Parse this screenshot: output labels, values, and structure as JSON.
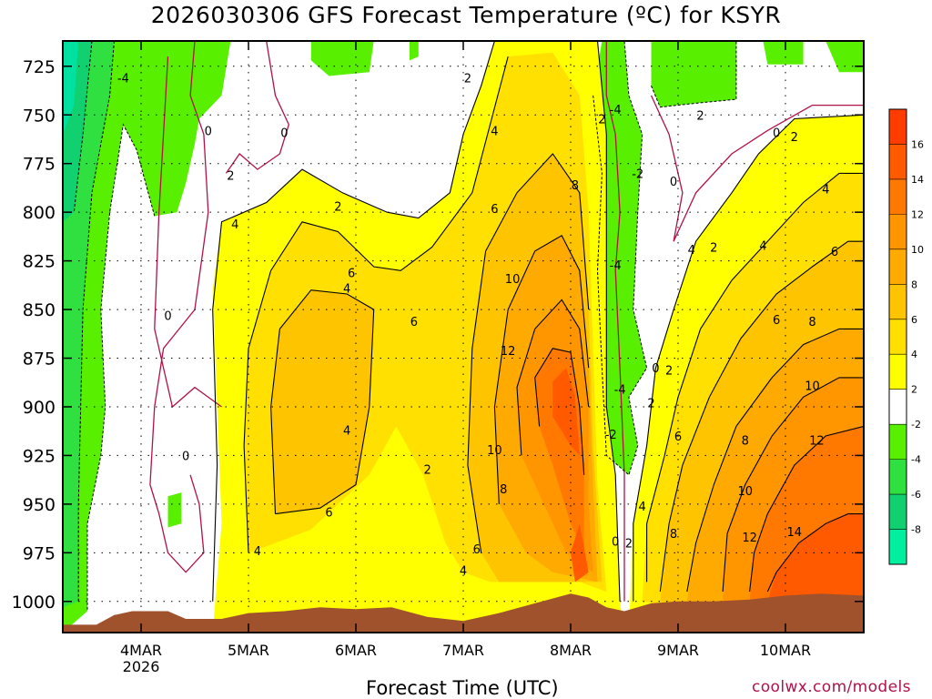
{
  "chart_data": {
    "type": "contour",
    "title": "2026030306 GFS Forecast Temperature (ºC) for KSYR",
    "xlabel": "Forecast Time (UTC)",
    "ylabel": "",
    "x_ticks": [
      {
        "label": "4MAR",
        "sub": "2026",
        "x": 0
      },
      {
        "label": "5MAR",
        "sub": "",
        "x": 24
      },
      {
        "label": "6MAR",
        "sub": "",
        "x": 48
      },
      {
        "label": "7MAR",
        "sub": "",
        "x": 72
      },
      {
        "label": "8MAR",
        "sub": "",
        "x": 96
      },
      {
        "label": "9MAR",
        "sub": "",
        "x": 120
      },
      {
        "label": "10MAR",
        "sub": "",
        "x": 144
      }
    ],
    "xlim": [
      -17.5,
      161.5
    ],
    "y_ticks": [
      725,
      750,
      775,
      800,
      825,
      850,
      875,
      900,
      925,
      950,
      975,
      1000
    ],
    "ylim": [
      1016,
      712
    ],
    "colorbar": {
      "labels": [
        "16",
        "14",
        "12",
        "10",
        "8",
        "6",
        "4",
        "2",
        "-2",
        "-4",
        "-6",
        "-8"
      ],
      "colors": [
        "#ff3c00",
        "#ff5a00",
        "#ff7800",
        "#ff9600",
        "#ffaa00",
        "#ffc400",
        "#ffe000",
        "#ffff00",
        "#ffffff",
        "#58f000",
        "#30e040",
        "#10d070",
        "#00f0a0"
      ]
    },
    "fill_colors": {
      "very_cold": "#00e0a0",
      "cold": "#10d070",
      "cool": "#30e040",
      "below_zero": "#58f000",
      "near_zero": "#ffffff",
      "mild": "#ffff00",
      "warm": "#ffe000",
      "warmer": "#ffc400",
      "hot": "#ffaa00",
      "hotter": "#ff9600",
      "very_hot": "#ff7800",
      "hottest": "#ff5a00",
      "terrain": "#a0522d"
    },
    "contour_labels": [
      {
        "text": "-4",
        "x": -4,
        "y": 731
      },
      {
        "text": "0",
        "x": 15,
        "y": 758
      },
      {
        "text": "0",
        "x": 32,
        "y": 759
      },
      {
        "text": "2",
        "x": 20,
        "y": 781
      },
      {
        "text": "4",
        "x": 21,
        "y": 806
      },
      {
        "text": "2",
        "x": 44,
        "y": 797
      },
      {
        "text": "6",
        "x": 47,
        "y": 831
      },
      {
        "text": "4",
        "x": 46,
        "y": 839
      },
      {
        "text": "0",
        "x": 6,
        "y": 853
      },
      {
        "text": "6",
        "x": 61,
        "y": 856
      },
      {
        "text": "12",
        "x": 82,
        "y": 871
      },
      {
        "text": "10",
        "x": 83,
        "y": 834
      },
      {
        "text": "8",
        "x": 97,
        "y": 786
      },
      {
        "text": "6",
        "x": 79,
        "y": 798
      },
      {
        "text": "4",
        "x": 79,
        "y": 758
      },
      {
        "text": "2",
        "x": 73,
        "y": 731
      },
      {
        "text": "2",
        "x": 103,
        "y": 752
      },
      {
        "text": "-4",
        "x": 106,
        "y": 747
      },
      {
        "text": "-2",
        "x": 111,
        "y": 780
      },
      {
        "text": "-4",
        "x": 106,
        "y": 827
      },
      {
        "text": "-4",
        "x": 107,
        "y": 891
      },
      {
        "text": "-2",
        "x": 105,
        "y": 914
      },
      {
        "text": "4",
        "x": 46,
        "y": 912
      },
      {
        "text": "0",
        "x": 10,
        "y": 925
      },
      {
        "text": "2",
        "x": 64,
        "y": 932
      },
      {
        "text": "10",
        "x": 79,
        "y": 922
      },
      {
        "text": "8",
        "x": 81,
        "y": 942
      },
      {
        "text": "6",
        "x": 42,
        "y": 954
      },
      {
        "text": "4",
        "x": 26,
        "y": 974
      },
      {
        "text": "6",
        "x": 75,
        "y": 973
      },
      {
        "text": "4",
        "x": 72,
        "y": 984
      },
      {
        "text": "0",
        "x": 106,
        "y": 969
      },
      {
        "text": "2",
        "x": 109,
        "y": 970
      },
      {
        "text": "4",
        "x": 112,
        "y": 951
      },
      {
        "text": "6",
        "x": 120,
        "y": 915
      },
      {
        "text": "8",
        "x": 119,
        "y": 965
      },
      {
        "text": "0",
        "x": 115,
        "y": 880
      },
      {
        "text": "2",
        "x": 118,
        "y": 881
      },
      {
        "text": "2",
        "x": 114,
        "y": 898
      },
      {
        "text": "2",
        "x": 125,
        "y": 750
      },
      {
        "text": "0",
        "x": 119,
        "y": 784
      },
      {
        "text": "0",
        "x": 142,
        "y": 759
      },
      {
        "text": "2",
        "x": 146,
        "y": 761
      },
      {
        "text": "4",
        "x": 153,
        "y": 788
      },
      {
        "text": "4",
        "x": 123,
        "y": 819
      },
      {
        "text": "2",
        "x": 128,
        "y": 818
      },
      {
        "text": "4",
        "x": 139,
        "y": 817
      },
      {
        "text": "6",
        "x": 155,
        "y": 820
      },
      {
        "text": "6",
        "x": 142,
        "y": 855
      },
      {
        "text": "8",
        "x": 150,
        "y": 856
      },
      {
        "text": "10",
        "x": 150,
        "y": 889
      },
      {
        "text": "12",
        "x": 151,
        "y": 917
      },
      {
        "text": "8",
        "x": 135,
        "y": 917
      },
      {
        "text": "10",
        "x": 135,
        "y": 943
      },
      {
        "text": "12",
        "x": 136,
        "y": 967
      },
      {
        "text": "14",
        "x": 146,
        "y": 964
      }
    ]
  }
}
